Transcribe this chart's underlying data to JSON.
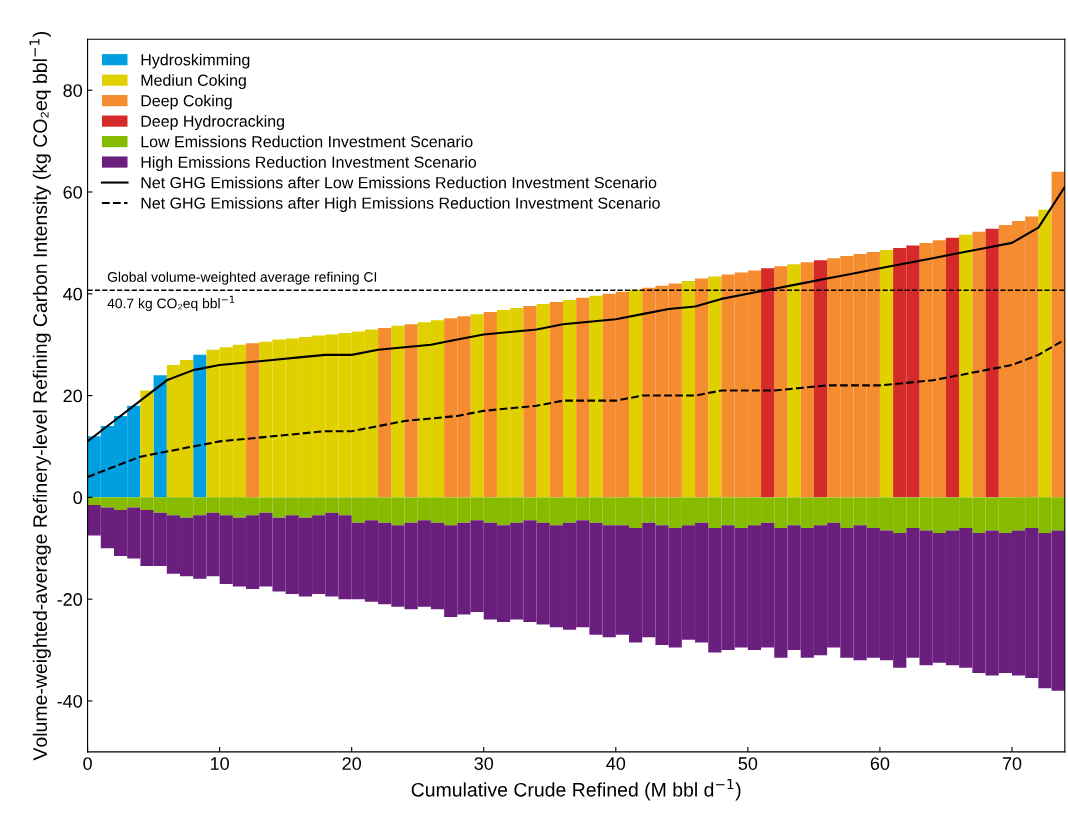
{
  "chart_data": {
    "type": "bar",
    "stacked": true,
    "xlabel": "Cumulative Crude Refined (M bbl d$^{−1}$)",
    "ylabel": "Volume-weighted-average Refinery-level Refining Carbon Intensity (kg CO₂eq bbl$^{−1}$)",
    "x": [
      0.5,
      1.5,
      2.5,
      3.5,
      4.5,
      5.5,
      6.5,
      7.5,
      8.5,
      9.5,
      10.5,
      11.5,
      12.5,
      13.5,
      14.5,
      15.5,
      16.5,
      17.5,
      18.5,
      19.5,
      20.5,
      21.5,
      22.5,
      23.5,
      24.5,
      25.5,
      26.5,
      27.5,
      28.5,
      29.5,
      30.5,
      31.5,
      32.5,
      33.5,
      34.5,
      35.5,
      36.5,
      37.5,
      38.5,
      39.5,
      40.5,
      41.5,
      42.5,
      43.5,
      44.5,
      45.5,
      46.5,
      47.5,
      48.5,
      49.5,
      50.5,
      51.5,
      52.5,
      53.5,
      54.5,
      55.5,
      56.5,
      57.5,
      58.5,
      59.5,
      60.5,
      61.5,
      62.5,
      63.5,
      64.5,
      65.5,
      66.5,
      67.5,
      68.5,
      69.5,
      70.5,
      71.5,
      72.5,
      73.5
    ],
    "xlim": [
      0,
      74
    ],
    "xticks": [
      0,
      10,
      20,
      30,
      40,
      50,
      60,
      70
    ],
    "ylim": [
      -50,
      90
    ],
    "yticks": [
      -40,
      -20,
      0,
      20,
      40,
      60,
      80
    ],
    "legend": "top left",
    "ref_lines": [
      {
        "axis": "y",
        "value": 40.7,
        "label": "Global volume-weighted average refining CI\n40.7 kg CO₂eq bbl$^{−1}$",
        "color": "#000000",
        "line_style": "dashed"
      }
    ],
    "series": [
      {
        "name": "Hydroskimming",
        "color": "#00a0e0",
        "values": [
          12,
          14,
          16,
          18,
          null,
          24,
          null,
          null,
          28,
          null,
          null,
          null,
          null,
          null,
          null,
          null,
          null,
          null,
          null,
          null,
          null,
          null,
          null,
          null,
          null,
          null,
          null,
          null,
          null,
          null,
          null,
          null,
          null,
          null,
          null,
          null,
          null,
          null,
          null,
          null,
          null,
          null,
          null,
          null,
          null,
          null,
          null,
          null,
          null,
          null,
          null,
          null,
          null,
          null,
          null,
          null,
          null,
          null,
          null,
          null,
          null,
          null,
          null,
          null,
          null,
          null,
          null,
          null,
          null,
          null,
          null,
          null,
          null,
          null
        ]
      },
      {
        "name": "Mediun Coking",
        "color": "#e0d000",
        "values": [
          null,
          null,
          null,
          null,
          21,
          null,
          26,
          27,
          null,
          29,
          29.5,
          30,
          null,
          30.6,
          31,
          31.2,
          31.5,
          31.8,
          32,
          32.3,
          32.6,
          33,
          null,
          33.7,
          null,
          34.4,
          34.8,
          null,
          null,
          36,
          null,
          36.8,
          37.2,
          null,
          38,
          null,
          38.8,
          null,
          39.6,
          null,
          null,
          40.8,
          null,
          null,
          null,
          42.5,
          null,
          43.4,
          null,
          null,
          null,
          null,
          null,
          45.8,
          null,
          null,
          null,
          null,
          null,
          null,
          48.6,
          null,
          null,
          null,
          null,
          null,
          51.6,
          null,
          null,
          null,
          null,
          null,
          56.5,
          null
        ]
      },
      {
        "name": "Deep Coking",
        "color": "#f68c30",
        "values": [
          null,
          null,
          null,
          null,
          null,
          null,
          null,
          null,
          null,
          null,
          null,
          null,
          30.3,
          null,
          null,
          null,
          null,
          null,
          null,
          null,
          null,
          null,
          33.3,
          null,
          34,
          null,
          null,
          35.2,
          35.6,
          null,
          36.4,
          null,
          null,
          37.6,
          null,
          38.4,
          null,
          39.2,
          null,
          40,
          40.4,
          null,
          41.2,
          41.6,
          42,
          null,
          43,
          null,
          43.8,
          44.2,
          44.6,
          null,
          45.4,
          null,
          46.2,
          null,
          47,
          47.4,
          47.8,
          48.2,
          null,
          null,
          null,
          50,
          50.5,
          null,
          null,
          52.2,
          null,
          53.5,
          54.3,
          55.2,
          null,
          64
        ]
      },
      {
        "name": "Deep Hydrocracking",
        "color": "#d42a2a",
        "values": [
          null,
          null,
          null,
          null,
          null,
          null,
          null,
          null,
          null,
          null,
          null,
          null,
          null,
          null,
          null,
          null,
          null,
          null,
          null,
          null,
          null,
          null,
          null,
          null,
          null,
          null,
          null,
          null,
          null,
          null,
          null,
          null,
          null,
          null,
          null,
          null,
          null,
          null,
          null,
          null,
          null,
          null,
          null,
          null,
          null,
          null,
          null,
          null,
          null,
          null,
          null,
          45,
          null,
          null,
          null,
          46.6,
          null,
          null,
          null,
          null,
          null,
          49,
          49.5,
          null,
          null,
          51,
          null,
          null,
          52.8,
          null,
          null,
          null,
          null,
          null
        ]
      },
      {
        "name": "Low Emissions Reduction Investment Scenario",
        "color": "#86bb00",
        "values": [
          -1.5,
          -2,
          -2.5,
          -2,
          -2.5,
          -3,
          -3.5,
          -4,
          -3.5,
          -3,
          -3.5,
          -4,
          -3.5,
          -3,
          -4,
          -3.5,
          -4,
          -3.5,
          -3,
          -3.5,
          -5,
          -4.5,
          -5,
          -5.5,
          -5,
          -4.5,
          -5,
          -5.5,
          -5,
          -4.5,
          -5,
          -5.5,
          -5,
          -4.5,
          -5,
          -5.5,
          -5,
          -4.5,
          -5,
          -5.5,
          -5.5,
          -6,
          -5,
          -5.5,
          -6,
          -5.5,
          -5,
          -6,
          -5.5,
          -6,
          -5.5,
          -5,
          -6,
          -5.5,
          -6,
          -5.5,
          -5,
          -6,
          -5.5,
          -6,
          -6.5,
          -7,
          -6,
          -6.5,
          -7,
          -6.5,
          -6,
          -7,
          -6.5,
          -7,
          -6.5,
          -6,
          -7,
          -6.5
        ]
      },
      {
        "name": "High Emissions Reduction Investment Scenario",
        "color": "#6a1f7f",
        "values": [
          -6,
          -8,
          -9,
          -10,
          -11,
          -10.5,
          -11.5,
          -11.5,
          -12.5,
          -12.5,
          -13.5,
          -13.5,
          -14.5,
          -14.5,
          -14.5,
          -15.5,
          -15.5,
          -15.5,
          -16.5,
          -16.5,
          -15,
          -16,
          -16,
          -16,
          -17,
          -17,
          -17,
          -18,
          -18,
          -18,
          -19,
          -19,
          -19,
          -20,
          -20,
          -20,
          -21,
          -21,
          -22,
          -22,
          -21.5,
          -22.5,
          -22.5,
          -23.5,
          -23.5,
          -22.5,
          -23.5,
          -24.5,
          -24.5,
          -23.5,
          -24.5,
          -24.5,
          -25.5,
          -24.5,
          -25.5,
          -25.5,
          -24.5,
          -25.5,
          -26.5,
          -25.5,
          -25.5,
          -26.5,
          -25.5,
          -26.5,
          -25.5,
          -26.5,
          -27.5,
          -27.5,
          -28.5,
          -27.5,
          -28.5,
          -29.5,
          -30.5,
          -31.5
        ]
      },
      {
        "name": "Net GHG Emissions after Low Emissions Reduction Investment Scenario",
        "type": "line",
        "color": "#000000",
        "line_style": "solid",
        "x": [
          0,
          2,
          4,
          6,
          8,
          10,
          12,
          14,
          16,
          18,
          20,
          22,
          24,
          26,
          28,
          30,
          32,
          34,
          36,
          38,
          40,
          42,
          44,
          46,
          48,
          50,
          52,
          54,
          56,
          58,
          60,
          62,
          64,
          66,
          68,
          70,
          72,
          74
        ],
        "values": [
          11,
          15,
          19,
          23,
          25,
          26,
          26.5,
          27,
          27.5,
          28,
          28,
          29,
          29.5,
          30,
          31,
          32,
          32.5,
          33,
          34,
          34.5,
          35,
          36,
          37,
          37.5,
          39,
          40,
          41,
          42,
          43,
          44,
          45,
          46,
          47,
          48,
          49,
          50,
          53,
          61
        ]
      },
      {
        "name": "Net GHG Emissions after High Emissions Reduction Investment Scenario",
        "type": "line",
        "color": "#000000",
        "line_style": "dashed",
        "x": [
          0,
          2,
          4,
          6,
          8,
          10,
          12,
          14,
          16,
          18,
          20,
          22,
          24,
          26,
          28,
          30,
          32,
          34,
          36,
          38,
          40,
          42,
          44,
          46,
          48,
          50,
          52,
          54,
          56,
          58,
          60,
          62,
          64,
          66,
          68,
          70,
          72,
          74
        ],
        "values": [
          4,
          6,
          8,
          9,
          10,
          11,
          11.5,
          12,
          12.5,
          13,
          13,
          14,
          15,
          15.5,
          16,
          17,
          17.5,
          18,
          19,
          19,
          19,
          20,
          20,
          20,
          21,
          21,
          21,
          21.5,
          22,
          22,
          22,
          22.5,
          23,
          24,
          25,
          26,
          28,
          31
        ]
      }
    ]
  }
}
